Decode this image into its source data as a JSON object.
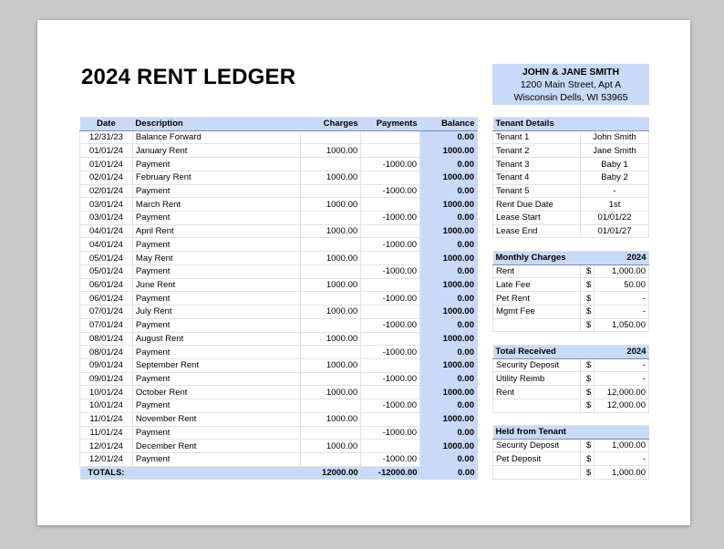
{
  "title": "2024 RENT LEDGER",
  "tenant_header": {
    "name": "JOHN & JANE SMITH",
    "street": "1200 Main Street, Apt A",
    "city": "Wisconsin Dells, WI 53965"
  },
  "ledger": {
    "columns": [
      "Date",
      "Description",
      "Charges",
      "Payments",
      "Balance"
    ],
    "rows": [
      [
        "12/31/23",
        "Balance Forward",
        "",
        "",
        "0.00"
      ],
      [
        "01/01/24",
        "January Rent",
        "1000.00",
        "",
        "1000.00"
      ],
      [
        "01/01/24",
        "Payment",
        "",
        "-1000.00",
        "0.00"
      ],
      [
        "02/01/24",
        "February Rent",
        "1000.00",
        "",
        "1000.00"
      ],
      [
        "02/01/24",
        "Payment",
        "",
        "-1000.00",
        "0.00"
      ],
      [
        "03/01/24",
        "March Rent",
        "1000.00",
        "",
        "1000.00"
      ],
      [
        "03/01/24",
        "Payment",
        "",
        "-1000.00",
        "0.00"
      ],
      [
        "04/01/24",
        "April Rent",
        "1000.00",
        "",
        "1000.00"
      ],
      [
        "04/01/24",
        "Payment",
        "",
        "-1000.00",
        "0.00"
      ],
      [
        "05/01/24",
        "May Rent",
        "1000.00",
        "",
        "1000.00"
      ],
      [
        "05/01/24",
        "Payment",
        "",
        "-1000.00",
        "0.00"
      ],
      [
        "06/01/24",
        "June Rent",
        "1000.00",
        "",
        "1000.00"
      ],
      [
        "06/01/24",
        "Payment",
        "",
        "-1000.00",
        "0.00"
      ],
      [
        "07/01/24",
        "July Rent",
        "1000.00",
        "",
        "1000.00"
      ],
      [
        "07/01/24",
        "Payment",
        "",
        "-1000.00",
        "0.00"
      ],
      [
        "08/01/24",
        "August Rent",
        "1000.00",
        "",
        "1000.00"
      ],
      [
        "08/01/24",
        "Payment",
        "",
        "-1000.00",
        "0.00"
      ],
      [
        "09/01/24",
        "September Rent",
        "1000.00",
        "",
        "1000.00"
      ],
      [
        "09/01/24",
        "Payment",
        "",
        "-1000.00",
        "0.00"
      ],
      [
        "10/01/24",
        "October Rent",
        "1000.00",
        "",
        "1000.00"
      ],
      [
        "10/01/24",
        "Payment",
        "",
        "-1000.00",
        "0.00"
      ],
      [
        "11/01/24",
        "November Rent",
        "1000.00",
        "",
        "1000.00"
      ],
      [
        "11/01/24",
        "Payment",
        "",
        "-1000.00",
        "0.00"
      ],
      [
        "12/01/24",
        "December Rent",
        "1000.00",
        "",
        "1000.00"
      ],
      [
        "12/01/24",
        "Payment",
        "",
        "-1000.00",
        "0.00"
      ]
    ],
    "totals": [
      "TOTALS:",
      "",
      "12000.00",
      "-12000.00",
      "0.00"
    ]
  },
  "tenant_details": {
    "title": "Tenant Details",
    "rows": [
      [
        "Tenant 1",
        "John Smith"
      ],
      [
        "Tenant 2",
        "Jane Smith"
      ],
      [
        "Tenant 3",
        "Baby 1"
      ],
      [
        "Tenant 4",
        "Baby 2"
      ],
      [
        "Tenant 5",
        "-"
      ],
      [
        "Rent Due Date",
        "1st"
      ],
      [
        "Lease Start",
        "01/01/22"
      ],
      [
        "Lease End",
        "01/01/27"
      ]
    ]
  },
  "monthly_charges": {
    "title": "Monthly Charges",
    "year": "2024",
    "rows": [
      [
        "Rent",
        "$",
        "1,000.00"
      ],
      [
        "Late Fee",
        "$",
        "50.00"
      ],
      [
        "Pet Rent",
        "$",
        "-"
      ],
      [
        "Mgmt Fee",
        "$",
        "-"
      ]
    ],
    "total": [
      "",
      "$",
      "1,050.00"
    ]
  },
  "total_received": {
    "title": "Total Received",
    "year": "2024",
    "rows": [
      [
        "Security Deposit",
        "$",
        "-"
      ],
      [
        "Utility Reimb",
        "$",
        "-"
      ],
      [
        "Rent",
        "$",
        "12,000.00"
      ]
    ],
    "total": [
      "",
      "$",
      "12,000.00"
    ]
  },
  "held_from_tenant": {
    "title": "Held from Tenant",
    "year": "",
    "rows": [
      [
        "Security Deposit",
        "$",
        "1,000.00"
      ],
      [
        "Pet Deposit",
        "$",
        "-"
      ]
    ],
    "total": [
      "",
      "$",
      "1,000.00"
    ]
  }
}
